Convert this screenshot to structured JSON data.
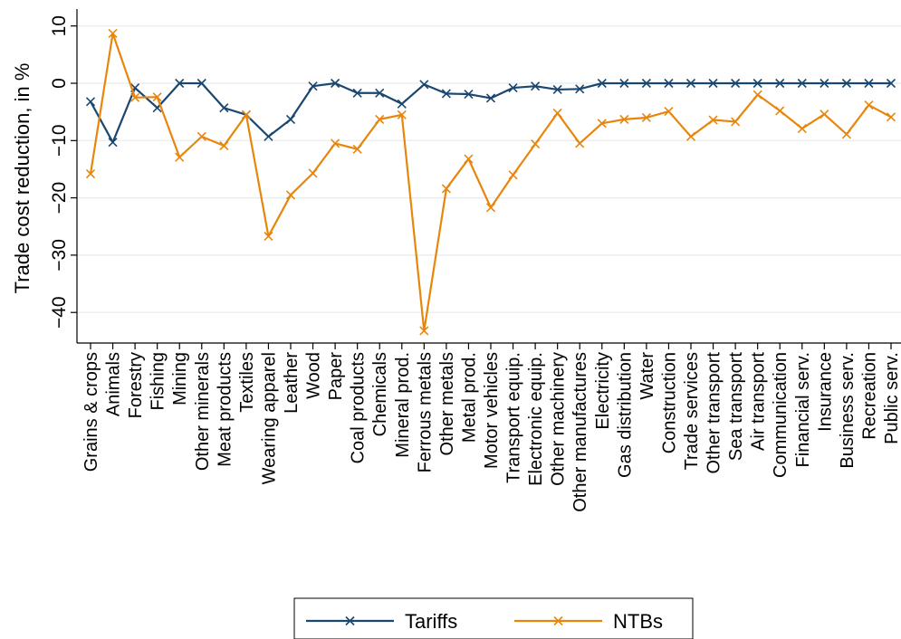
{
  "chart_data": {
    "type": "line",
    "ylabel": "Trade cost reduction, in %",
    "xlabel": "",
    "ylim": [
      -45,
      12
    ],
    "yticks": [
      10,
      0,
      -10,
      -20,
      -30,
      -40
    ],
    "ytick_labels": [
      "10",
      "0",
      "−10",
      "−20",
      "−30",
      "−40"
    ],
    "grid": true,
    "legend_position": "bottom-center",
    "categories": [
      "Grains & crops",
      "Animals",
      "Forestry",
      "Fishing",
      "Mining",
      "Other minerals",
      "Meat products",
      "Textiles",
      "Wearing apparel",
      "Leather",
      "Wood",
      "Paper",
      "Coal products",
      "Chemicals",
      "Mineral prod.",
      "Ferrous metals",
      "Other metals",
      "Metal prod.",
      "Motor vehicles",
      "Transport equip.",
      "Electronic equip.",
      "Other machinery",
      "Other manufactures",
      "Electricity",
      "Gas distribution",
      "Water",
      "Construction",
      "Trade services",
      "Other transport",
      "Sea transport",
      "Air transport",
      "Communication",
      "Financial serv.",
      "Insurance",
      "Business serv.",
      "Recreation",
      "Public serv."
    ],
    "series": [
      {
        "name": "Tariffs",
        "color": "#1a476f",
        "marker": "x",
        "values": [
          -3.2,
          -10.3,
          -0.8,
          -4.3,
          0,
          0,
          -4.3,
          -5.5,
          -9.3,
          -6.3,
          -0.5,
          0,
          -1.7,
          -1.7,
          -3.6,
          -0.2,
          -1.8,
          -1.9,
          -2.6,
          -0.8,
          -0.5,
          -1.1,
          -1.0,
          0,
          0,
          0,
          0,
          0,
          0,
          0,
          0,
          0,
          0,
          0,
          0,
          0,
          0
        ]
      },
      {
        "name": "NTBs",
        "color": "#e8860c",
        "marker": "x",
        "values": [
          -15.8,
          8.7,
          -2.5,
          -2.4,
          -12.9,
          -9.3,
          -10.9,
          -5.5,
          -26.7,
          -19.5,
          -15.7,
          -10.5,
          -11.5,
          -6.3,
          -5.5,
          -43.2,
          -18.4,
          -13.2,
          -21.7,
          -16.0,
          -10.6,
          -5.2,
          -10.5,
          -7.0,
          -6.3,
          -6.0,
          -4.9,
          -9.3,
          -6.4,
          -6.7,
          -2.0,
          -4.8,
          -7.9,
          -5.4,
          -8.9,
          -3.8,
          -5.9
        ]
      }
    ]
  }
}
